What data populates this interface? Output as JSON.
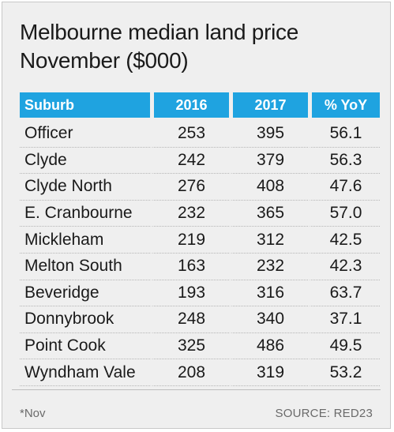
{
  "title_line1": "Melbourne median land price",
  "title_line2": "November ($000)",
  "footnote": "*Nov",
  "source": "SOURCE: RED23",
  "header_color": "#1fa3e0",
  "chart_data": {
    "type": "table",
    "title": "Melbourne median land price November ($000)",
    "columns": [
      "Suburb",
      "2016",
      "2017",
      "% YoY"
    ],
    "rows": [
      [
        "Officer",
        "253",
        "395",
        "56.1"
      ],
      [
        "Clyde",
        "242",
        "379",
        "56.3"
      ],
      [
        "Clyde North",
        "276",
        "408",
        "47.6"
      ],
      [
        "E. Cranbourne",
        "232",
        "365",
        "57.0"
      ],
      [
        "Mickleham",
        "219",
        "312",
        "42.5"
      ],
      [
        "Melton South",
        "163",
        "232",
        "42.3"
      ],
      [
        "Beveridge",
        "193",
        "316",
        "63.7"
      ],
      [
        "Donnybrook",
        "248",
        "340",
        "37.1"
      ],
      [
        "Point Cook",
        "325",
        "486",
        "49.5"
      ],
      [
        "Wyndham Vale",
        "208",
        "319",
        "53.2"
      ]
    ]
  }
}
